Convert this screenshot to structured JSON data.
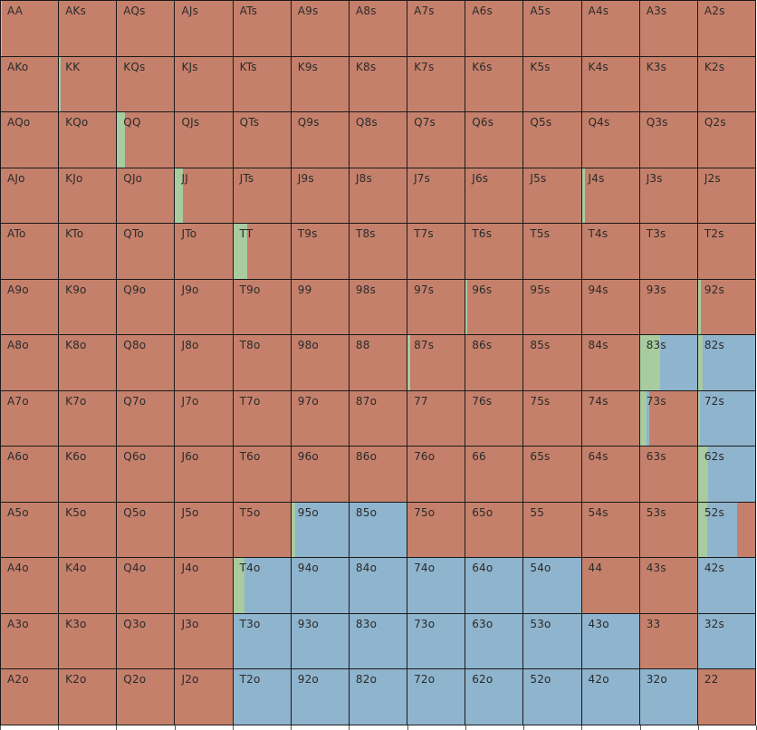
{
  "colors": {
    "fold": "#c5806b",
    "raise": "#8fb4cd",
    "call": "#a8cba0",
    "grid_line": "#1a1a1a"
  },
  "actions_legend_order": [
    "call",
    "raise",
    "fold"
  ],
  "grid": [
    [
      {
        "hand": "AA",
        "mix": {
          "fold": 0.98,
          "call": 0.02
        }
      },
      {
        "hand": "AKs",
        "mix": {
          "fold": 1
        }
      },
      {
        "hand": "AQs",
        "mix": {
          "fold": 1
        }
      },
      {
        "hand": "AJs",
        "mix": {
          "fold": 1
        }
      },
      {
        "hand": "ATs",
        "mix": {
          "fold": 1
        }
      },
      {
        "hand": "A9s",
        "mix": {
          "fold": 1
        }
      },
      {
        "hand": "A8s",
        "mix": {
          "fold": 1
        }
      },
      {
        "hand": "A7s",
        "mix": {
          "fold": 1
        }
      },
      {
        "hand": "A6s",
        "mix": {
          "fold": 1
        }
      },
      {
        "hand": "A5s",
        "mix": {
          "fold": 1
        }
      },
      {
        "hand": "A4s",
        "mix": {
          "fold": 1
        }
      },
      {
        "hand": "A3s",
        "mix": {
          "fold": 1
        }
      },
      {
        "hand": "A2s",
        "mix": {
          "fold": 1
        }
      }
    ],
    [
      {
        "hand": "AKo",
        "mix": {
          "fold": 1
        }
      },
      {
        "hand": "KK",
        "mix": {
          "fold": 0.97,
          "call": 0.03
        }
      },
      {
        "hand": "KQs",
        "mix": {
          "fold": 1
        }
      },
      {
        "hand": "KJs",
        "mix": {
          "fold": 1
        }
      },
      {
        "hand": "KTs",
        "mix": {
          "fold": 1
        }
      },
      {
        "hand": "K9s",
        "mix": {
          "fold": 1
        }
      },
      {
        "hand": "K8s",
        "mix": {
          "fold": 1
        }
      },
      {
        "hand": "K7s",
        "mix": {
          "fold": 1
        }
      },
      {
        "hand": "K6s",
        "mix": {
          "fold": 1
        }
      },
      {
        "hand": "K5s",
        "mix": {
          "fold": 1
        }
      },
      {
        "hand": "K4s",
        "mix": {
          "fold": 1
        }
      },
      {
        "hand": "K3s",
        "mix": {
          "fold": 1
        }
      },
      {
        "hand": "K2s",
        "mix": {
          "fold": 1
        }
      }
    ],
    [
      {
        "hand": "AQo",
        "mix": {
          "fold": 1
        }
      },
      {
        "hand": "KQo",
        "mix": {
          "fold": 1
        }
      },
      {
        "hand": "QQ",
        "mix": {
          "fold": 0.87,
          "call": 0.13
        }
      },
      {
        "hand": "QJs",
        "mix": {
          "fold": 1
        }
      },
      {
        "hand": "QTs",
        "mix": {
          "fold": 1
        }
      },
      {
        "hand": "Q9s",
        "mix": {
          "fold": 1
        }
      },
      {
        "hand": "Q8s",
        "mix": {
          "fold": 1
        }
      },
      {
        "hand": "Q7s",
        "mix": {
          "fold": 1
        }
      },
      {
        "hand": "Q6s",
        "mix": {
          "fold": 1
        }
      },
      {
        "hand": "Q5s",
        "mix": {
          "fold": 1
        }
      },
      {
        "hand": "Q4s",
        "mix": {
          "fold": 1
        }
      },
      {
        "hand": "Q3s",
        "mix": {
          "fold": 1
        }
      },
      {
        "hand": "Q2s",
        "mix": {
          "fold": 1
        }
      }
    ],
    [
      {
        "hand": "AJo",
        "mix": {
          "fold": 1
        }
      },
      {
        "hand": "KJo",
        "mix": {
          "fold": 1
        }
      },
      {
        "hand": "QJo",
        "mix": {
          "fold": 1
        }
      },
      {
        "hand": "JJ",
        "mix": {
          "fold": 0.87,
          "call": 0.13
        }
      },
      {
        "hand": "JTs",
        "mix": {
          "fold": 1
        }
      },
      {
        "hand": "J9s",
        "mix": {
          "fold": 1
        }
      },
      {
        "hand": "J8s",
        "mix": {
          "fold": 1
        }
      },
      {
        "hand": "J7s",
        "mix": {
          "fold": 1
        }
      },
      {
        "hand": "J6s",
        "mix": {
          "fold": 1
        }
      },
      {
        "hand": "J5s",
        "mix": {
          "fold": 1
        }
      },
      {
        "hand": "J4s",
        "mix": {
          "fold": 0.95,
          "call": 0.05
        }
      },
      {
        "hand": "J3s",
        "mix": {
          "fold": 1
        }
      },
      {
        "hand": "J2s",
        "mix": {
          "fold": 1
        }
      }
    ],
    [
      {
        "hand": "ATo",
        "mix": {
          "fold": 1
        }
      },
      {
        "hand": "KTo",
        "mix": {
          "fold": 1
        }
      },
      {
        "hand": "QTo",
        "mix": {
          "fold": 1
        }
      },
      {
        "hand": "JTo",
        "mix": {
          "fold": 1
        }
      },
      {
        "hand": "TT",
        "mix": {
          "fold": 0.75,
          "call": 0.25
        }
      },
      {
        "hand": "T9s",
        "mix": {
          "fold": 1
        }
      },
      {
        "hand": "T8s",
        "mix": {
          "fold": 1
        }
      },
      {
        "hand": "T7s",
        "mix": {
          "fold": 1
        }
      },
      {
        "hand": "T6s",
        "mix": {
          "fold": 1
        }
      },
      {
        "hand": "T5s",
        "mix": {
          "fold": 1
        }
      },
      {
        "hand": "T4s",
        "mix": {
          "fold": 1
        }
      },
      {
        "hand": "T3s",
        "mix": {
          "fold": 1
        }
      },
      {
        "hand": "T2s",
        "mix": {
          "fold": 1
        }
      }
    ],
    [
      {
        "hand": "A9o",
        "mix": {
          "fold": 1
        }
      },
      {
        "hand": "K9o",
        "mix": {
          "fold": 1
        }
      },
      {
        "hand": "Q9o",
        "mix": {
          "fold": 1
        }
      },
      {
        "hand": "J9o",
        "mix": {
          "fold": 1
        }
      },
      {
        "hand": "T9o",
        "mix": {
          "fold": 1
        }
      },
      {
        "hand": "99",
        "mix": {
          "fold": 1
        }
      },
      {
        "hand": "98s",
        "mix": {
          "fold": 1
        }
      },
      {
        "hand": "97s",
        "mix": {
          "fold": 1
        }
      },
      {
        "hand": "96s",
        "mix": {
          "fold": 0.97,
          "call": 0.03
        }
      },
      {
        "hand": "95s",
        "mix": {
          "fold": 1
        }
      },
      {
        "hand": "94s",
        "mix": {
          "fold": 1
        }
      },
      {
        "hand": "93s",
        "mix": {
          "fold": 1
        }
      },
      {
        "hand": "92s",
        "mix": {
          "fold": 0.95,
          "call": 0.05
        }
      }
    ],
    [
      {
        "hand": "A8o",
        "mix": {
          "fold": 1
        }
      },
      {
        "hand": "K8o",
        "mix": {
          "fold": 1
        }
      },
      {
        "hand": "Q8o",
        "mix": {
          "fold": 1
        }
      },
      {
        "hand": "J8o",
        "mix": {
          "fold": 1
        }
      },
      {
        "hand": "T8o",
        "mix": {
          "fold": 1
        }
      },
      {
        "hand": "98o",
        "mix": {
          "fold": 1
        }
      },
      {
        "hand": "88",
        "mix": {
          "fold": 1
        }
      },
      {
        "hand": "87s",
        "mix": {
          "fold": 0.96,
          "call": 0.04
        }
      },
      {
        "hand": "86s",
        "mix": {
          "fold": 1
        }
      },
      {
        "hand": "85s",
        "mix": {
          "fold": 1
        }
      },
      {
        "hand": "84s",
        "mix": {
          "fold": 1
        }
      },
      {
        "hand": "83s",
        "mix": {
          "call": 0.35,
          "raise": 0.65
        }
      },
      {
        "hand": "82s",
        "mix": {
          "call": 0.08,
          "raise": 0.92
        }
      }
    ],
    [
      {
        "hand": "A7o",
        "mix": {
          "fold": 1
        }
      },
      {
        "hand": "K7o",
        "mix": {
          "fold": 1
        }
      },
      {
        "hand": "Q7o",
        "mix": {
          "fold": 1
        }
      },
      {
        "hand": "J7o",
        "mix": {
          "fold": 1
        }
      },
      {
        "hand": "T7o",
        "mix": {
          "fold": 1
        }
      },
      {
        "hand": "97o",
        "mix": {
          "fold": 1
        }
      },
      {
        "hand": "87o",
        "mix": {
          "fold": 1
        }
      },
      {
        "hand": "77",
        "mix": {
          "fold": 1
        }
      },
      {
        "hand": "76s",
        "mix": {
          "fold": 1
        }
      },
      {
        "hand": "75s",
        "mix": {
          "fold": 1
        }
      },
      {
        "hand": "74s",
        "mix": {
          "fold": 1
        }
      },
      {
        "hand": "73s",
        "mix": {
          "fold": 0.83,
          "call": 0.12,
          "raise": 0.05
        }
      },
      {
        "hand": "72s",
        "mix": {
          "call": 0.03,
          "raise": 0.97
        }
      }
    ],
    [
      {
        "hand": "A6o",
        "mix": {
          "fold": 1
        }
      },
      {
        "hand": "K6o",
        "mix": {
          "fold": 1
        }
      },
      {
        "hand": "Q6o",
        "mix": {
          "fold": 1
        }
      },
      {
        "hand": "J6o",
        "mix": {
          "fold": 1
        }
      },
      {
        "hand": "T6o",
        "mix": {
          "fold": 1
        }
      },
      {
        "hand": "96o",
        "mix": {
          "fold": 1
        }
      },
      {
        "hand": "86o",
        "mix": {
          "fold": 1
        }
      },
      {
        "hand": "76o",
        "mix": {
          "fold": 1
        }
      },
      {
        "hand": "66",
        "mix": {
          "fold": 1
        }
      },
      {
        "hand": "65s",
        "mix": {
          "fold": 1
        }
      },
      {
        "hand": "64s",
        "mix": {
          "fold": 1
        }
      },
      {
        "hand": "63s",
        "mix": {
          "fold": 1
        }
      },
      {
        "hand": "62s",
        "mix": {
          "call": 0.17,
          "raise": 0.83
        }
      }
    ],
    [
      {
        "hand": "A5o",
        "mix": {
          "fold": 1
        }
      },
      {
        "hand": "K5o",
        "mix": {
          "fold": 1
        }
      },
      {
        "hand": "Q5o",
        "mix": {
          "fold": 1
        }
      },
      {
        "hand": "J5o",
        "mix": {
          "fold": 1
        }
      },
      {
        "hand": "T5o",
        "mix": {
          "fold": 1
        }
      },
      {
        "hand": "95o",
        "mix": {
          "call": 0.07,
          "raise": 0.93
        }
      },
      {
        "hand": "85o",
        "mix": {
          "raise": 1
        }
      },
      {
        "hand": "75o",
        "mix": {
          "fold": 1
        }
      },
      {
        "hand": "65o",
        "mix": {
          "fold": 1
        }
      },
      {
        "hand": "55",
        "mix": {
          "fold": 1
        }
      },
      {
        "hand": "54s",
        "mix": {
          "fold": 1
        }
      },
      {
        "hand": "53s",
        "mix": {
          "fold": 1
        }
      },
      {
        "hand": "52s",
        "mix": {
          "fold": 0.32,
          "call": 0.16,
          "raise": 0.52
        }
      }
    ],
    [
      {
        "hand": "A4o",
        "mix": {
          "fold": 1
        }
      },
      {
        "hand": "K4o",
        "mix": {
          "fold": 1
        }
      },
      {
        "hand": "Q4o",
        "mix": {
          "fold": 1
        }
      },
      {
        "hand": "J4o",
        "mix": {
          "fold": 1
        }
      },
      {
        "hand": "T4o",
        "mix": {
          "call": 0.2,
          "raise": 0.8
        }
      },
      {
        "hand": "94o",
        "mix": {
          "raise": 1
        }
      },
      {
        "hand": "84o",
        "mix": {
          "raise": 1
        }
      },
      {
        "hand": "74o",
        "mix": {
          "raise": 1
        }
      },
      {
        "hand": "64o",
        "mix": {
          "raise": 1
        }
      },
      {
        "hand": "54o",
        "mix": {
          "raise": 1
        }
      },
      {
        "hand": "44",
        "mix": {
          "fold": 1
        }
      },
      {
        "hand": "43s",
        "mix": {
          "fold": 1
        }
      },
      {
        "hand": "42s",
        "mix": {
          "raise": 1
        }
      }
    ],
    [
      {
        "hand": "A3o",
        "mix": {
          "fold": 1
        }
      },
      {
        "hand": "K3o",
        "mix": {
          "fold": 1
        }
      },
      {
        "hand": "Q3o",
        "mix": {
          "fold": 1
        }
      },
      {
        "hand": "J3o",
        "mix": {
          "fold": 1
        }
      },
      {
        "hand": "T3o",
        "mix": {
          "raise": 1
        }
      },
      {
        "hand": "93o",
        "mix": {
          "raise": 1
        }
      },
      {
        "hand": "83o",
        "mix": {
          "raise": 1
        }
      },
      {
        "hand": "73o",
        "mix": {
          "raise": 1
        }
      },
      {
        "hand": "63o",
        "mix": {
          "raise": 1
        }
      },
      {
        "hand": "53o",
        "mix": {
          "raise": 1
        }
      },
      {
        "hand": "43o",
        "mix": {
          "raise": 1
        }
      },
      {
        "hand": "33",
        "mix": {
          "fold": 1
        }
      },
      {
        "hand": "32s",
        "mix": {
          "raise": 1
        }
      }
    ],
    [
      {
        "hand": "A2o",
        "mix": {
          "fold": 1
        }
      },
      {
        "hand": "K2o",
        "mix": {
          "fold": 1
        }
      },
      {
        "hand": "Q2o",
        "mix": {
          "fold": 1
        }
      },
      {
        "hand": "J2o",
        "mix": {
          "fold": 1
        }
      },
      {
        "hand": "T2o",
        "mix": {
          "raise": 1
        }
      },
      {
        "hand": "92o",
        "mix": {
          "raise": 1
        }
      },
      {
        "hand": "82o",
        "mix": {
          "raise": 1
        }
      },
      {
        "hand": "72o",
        "mix": {
          "raise": 1
        }
      },
      {
        "hand": "62o",
        "mix": {
          "raise": 1
        }
      },
      {
        "hand": "52o",
        "mix": {
          "raise": 1
        }
      },
      {
        "hand": "42o",
        "mix": {
          "raise": 1
        }
      },
      {
        "hand": "32o",
        "mix": {
          "raise": 1
        }
      },
      {
        "hand": "22",
        "mix": {
          "fold": 1
        }
      }
    ]
  ]
}
